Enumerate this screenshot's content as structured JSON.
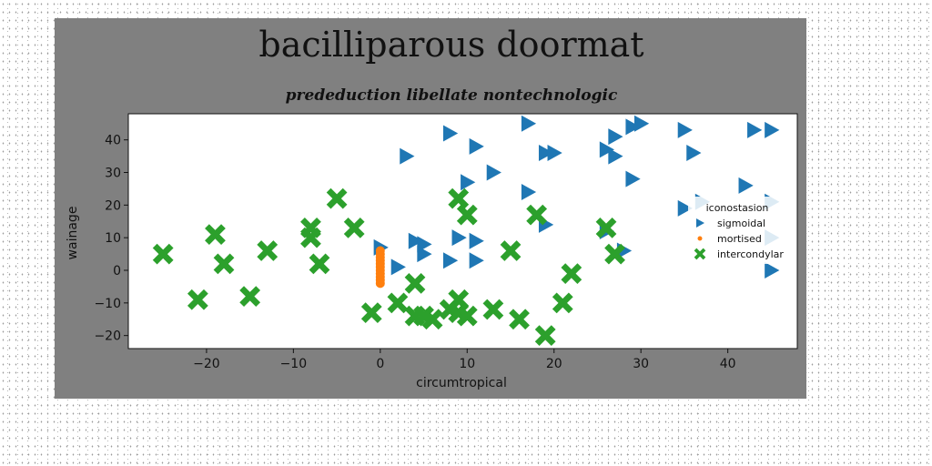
{
  "chart_data": {
    "type": "scatter",
    "title": "bacilliparous doormat",
    "subtitle": "prededuction libellate nontechnologic",
    "xlabel": "circumtropical",
    "ylabel": "wainage",
    "xlim": [
      -29,
      48
    ],
    "ylim": [
      -24,
      48
    ],
    "x_ticks": [
      -20,
      -10,
      0,
      10,
      20,
      30,
      40
    ],
    "y_ticks": [
      -20,
      -10,
      0,
      10,
      20,
      30,
      40
    ],
    "grid": false,
    "legend_title": "iconostasion",
    "legend_position": "right",
    "colors": {
      "figure_bg": "#808080",
      "plot_bg": "#ffffff",
      "sigmoidal": "#1f77b4",
      "mortised": "#ff7f0e",
      "intercondylar": "#2ca02c"
    },
    "series": [
      {
        "name": "sigmoidal",
        "marker": "triangle-right",
        "points": [
          [
            3,
            35
          ],
          [
            8,
            42
          ],
          [
            11,
            38
          ],
          [
            17,
            45
          ],
          [
            19,
            36
          ],
          [
            20,
            36
          ],
          [
            26,
            37
          ],
          [
            27,
            41
          ],
          [
            27,
            35
          ],
          [
            29,
            44
          ],
          [
            30,
            45
          ],
          [
            35,
            43
          ],
          [
            36,
            36
          ],
          [
            43,
            43
          ],
          [
            45,
            43
          ],
          [
            10,
            27
          ],
          [
            13,
            30
          ],
          [
            17,
            24
          ],
          [
            29,
            28
          ],
          [
            42,
            26
          ],
          [
            37,
            21
          ],
          [
            45,
            21
          ],
          [
            35,
            19
          ],
          [
            19,
            14
          ],
          [
            26,
            12
          ],
          [
            28,
            6
          ],
          [
            0,
            7
          ],
          [
            4,
            9
          ],
          [
            5,
            8
          ],
          [
            5,
            5
          ],
          [
            9,
            10
          ],
          [
            11,
            9
          ],
          [
            2,
            1
          ],
          [
            8,
            3
          ],
          [
            11,
            3
          ],
          [
            45,
            0
          ],
          [
            45,
            10
          ]
        ]
      },
      {
        "name": "mortised",
        "marker": "circle",
        "points": [
          [
            0,
            6
          ],
          [
            0,
            5
          ],
          [
            0,
            4
          ],
          [
            0,
            3
          ],
          [
            0,
            2
          ],
          [
            0,
            1
          ],
          [
            0,
            0
          ],
          [
            0,
            -1
          ],
          [
            0,
            -2
          ],
          [
            0,
            -3
          ],
          [
            0,
            -4
          ]
        ]
      },
      {
        "name": "intercondylar",
        "marker": "x",
        "points": [
          [
            -25,
            5
          ],
          [
            -21,
            -9
          ],
          [
            -19,
            11
          ],
          [
            -18,
            2
          ],
          [
            -15,
            -8
          ],
          [
            -13,
            6
          ],
          [
            -8,
            13
          ],
          [
            -8,
            10
          ],
          [
            -7,
            2
          ],
          [
            -5,
            22
          ],
          [
            -3,
            13
          ],
          [
            -1,
            -13
          ],
          [
            2,
            -10
          ],
          [
            4,
            -4
          ],
          [
            4,
            -14
          ],
          [
            5,
            -14
          ],
          [
            6,
            -15
          ],
          [
            8,
            -12
          ],
          [
            9,
            -9
          ],
          [
            9,
            -13
          ],
          [
            10,
            -14
          ],
          [
            9,
            22
          ],
          [
            10,
            17
          ],
          [
            13,
            -12
          ],
          [
            15,
            6
          ],
          [
            16,
            -15
          ],
          [
            18,
            17
          ],
          [
            19,
            -20
          ],
          [
            21,
            -10
          ],
          [
            22,
            -1
          ],
          [
            26,
            13
          ],
          [
            27,
            5
          ]
        ]
      }
    ]
  }
}
